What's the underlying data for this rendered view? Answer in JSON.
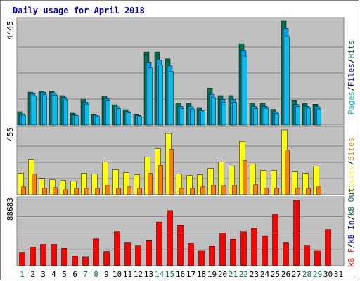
{
  "colors": {
    "background": "#ffffff",
    "panel": "#c0c0c0",
    "frame": "#808080",
    "gridline": "#808080",
    "title": "#0000c0",
    "hits": "#007050",
    "files": "#00a0f0",
    "pages": "#00c0f0",
    "visits": "#ffff00",
    "sites": "#ff8000",
    "kbf": "#ff0000",
    "kbin": "#0000ff",
    "kbout": "#007050",
    "weekday_tick": "#000000",
    "weekend_tick": "#007050"
  },
  "chart_data": [
    {
      "type": "bar",
      "title": "Daily usage for April 2018",
      "panel": "hits-files-pages",
      "ymax_label": "4445",
      "ylim": [
        0,
        4445
      ],
      "grid": true,
      "legend_placement": "right",
      "categories": [
        "1",
        "2",
        "3",
        "4",
        "5",
        "6",
        "7",
        "8",
        "9",
        "10",
        "11",
        "12",
        "13",
        "14",
        "15",
        "16",
        "17",
        "18",
        "19",
        "20",
        "21",
        "22",
        "23",
        "24",
        "25",
        "26",
        "27",
        "28",
        "29",
        "30",
        "31"
      ],
      "series": [
        {
          "name": "Hits",
          "color": "#007050",
          "values": [
            570,
            1410,
            1460,
            1440,
            1260,
            510,
            1090,
            470,
            1240,
            870,
            660,
            470,
            3120,
            3120,
            2830,
            950,
            920,
            720,
            1580,
            1260,
            1260,
            3480,
            940,
            940,
            670,
            4445,
            1040,
            920,
            890,
            0,
            0
          ]
        },
        {
          "name": "Files",
          "color": "#00a0f0",
          "values": [
            480,
            1340,
            1410,
            1380,
            1180,
            450,
            980,
            420,
            1130,
            780,
            570,
            410,
            2690,
            2780,
            2530,
            800,
            780,
            620,
            1310,
            1100,
            1100,
            3190,
            790,
            800,
            560,
            4140,
            880,
            800,
            780,
            0,
            0
          ]
        },
        {
          "name": "Pages",
          "color": "#00c0f0",
          "values": [
            420,
            1250,
            1300,
            1280,
            1080,
            400,
            900,
            380,
            1040,
            700,
            520,
            360,
            2440,
            2560,
            2290,
            700,
            690,
            560,
            1170,
            980,
            970,
            2940,
            700,
            720,
            490,
            3790,
            790,
            720,
            690,
            0,
            0
          ]
        }
      ]
    },
    {
      "type": "bar",
      "panel": "visits-sites",
      "ymax_label": "455",
      "ylim": [
        0,
        455
      ],
      "grid": true,
      "legend_placement": "right",
      "series": [
        {
          "name": "Visits",
          "color": "#ffff00",
          "values": [
            150,
            245,
            110,
            105,
            100,
            95,
            150,
            145,
            230,
            175,
            155,
            140,
            265,
            325,
            430,
            145,
            135,
            140,
            185,
            230,
            200,
            375,
            215,
            170,
            170,
            455,
            160,
            150,
            200,
            0,
            0
          ]
        },
        {
          "name": "Sites",
          "color": "#ff8000",
          "values": [
            55,
            145,
            45,
            50,
            35,
            45,
            45,
            45,
            65,
            45,
            55,
            45,
            150,
            205,
            320,
            45,
            45,
            55,
            65,
            60,
            65,
            240,
            70,
            45,
            45,
            315,
            45,
            45,
            55,
            0,
            0
          ]
        }
      ]
    },
    {
      "type": "bar",
      "panel": "kbytes",
      "ymax_label": "88683",
      "ylim": [
        0,
        88683
      ],
      "grid": true,
      "legend_placement": "right",
      "series": [
        {
          "name": "kB F",
          "color": "#ff0000",
          "values": [
            17500,
            25500,
            29000,
            29000,
            23500,
            13000,
            11500,
            36500,
            18500,
            46000,
            31000,
            27000,
            34000,
            59000,
            74500,
            55000,
            30000,
            20000,
            26500,
            44500,
            36000,
            46000,
            50500,
            40000,
            70000,
            31000,
            88683,
            27000,
            20000,
            49000,
            0
          ]
        }
      ]
    }
  ],
  "legend": {
    "top": [
      "Pages",
      "/",
      "Files",
      "/",
      "Hits"
    ],
    "middle": [
      "Visits",
      "/",
      "Sites"
    ],
    "bottom": [
      "kB F",
      "/",
      "kB In",
      "/",
      "kB Out"
    ]
  },
  "weekend_days": [
    1,
    7,
    8,
    14,
    15,
    21,
    22,
    28,
    29
  ]
}
